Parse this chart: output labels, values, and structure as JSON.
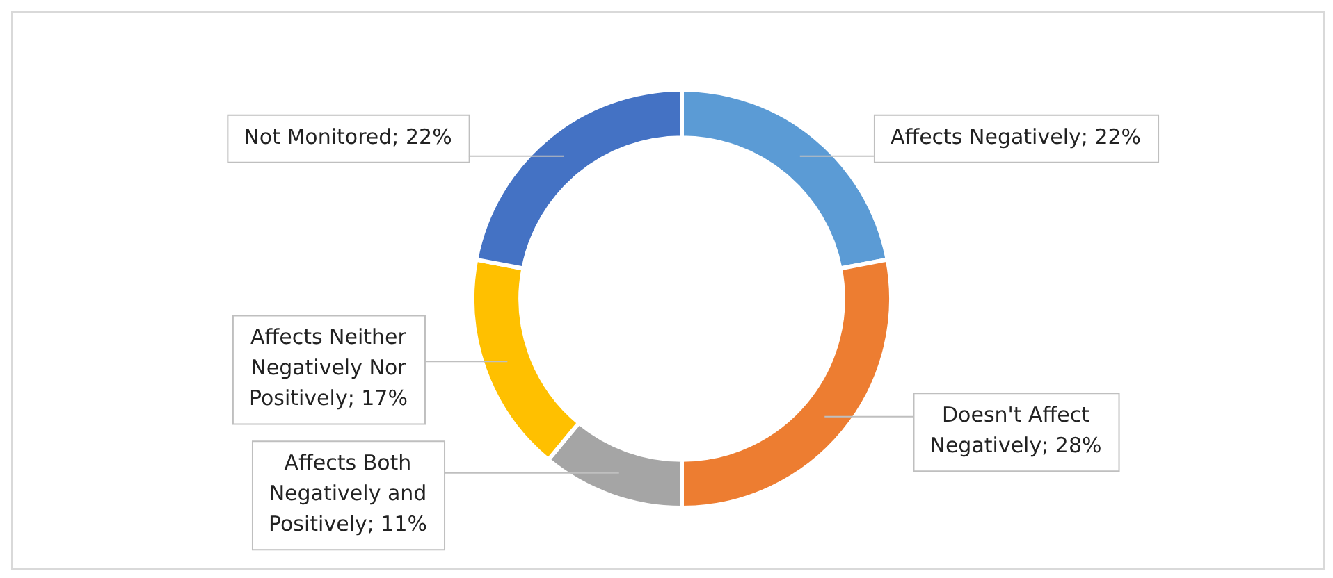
{
  "chart_data": {
    "type": "donut",
    "categories": [
      "Affects Negatively",
      "Doesn't Affect Negatively",
      "Affects Both Negatively and Positively",
      "Affects Neither Negatively Nor Positively",
      "Not Monitored"
    ],
    "value_labels": [
      "22%",
      "28%",
      "11%",
      "17%",
      "22%"
    ],
    "values": [
      22,
      28,
      11,
      17,
      22
    ],
    "colors": [
      "#5b9bd5",
      "#ed7d31",
      "#a5a5a5",
      "#ffc000",
      "#4472c4"
    ],
    "legend": false
  }
}
